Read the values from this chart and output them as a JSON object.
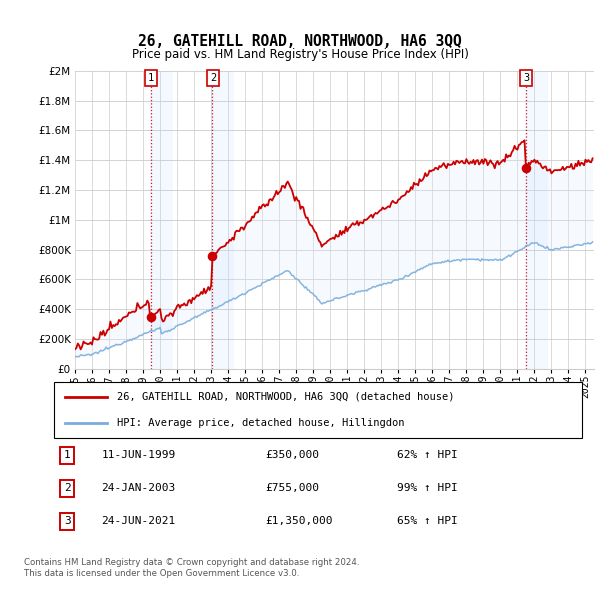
{
  "title": "26, GATEHILL ROAD, NORTHWOOD, HA6 3QQ",
  "subtitle": "Price paid vs. HM Land Registry's House Price Index (HPI)",
  "ytick_values": [
    0,
    200000,
    400000,
    600000,
    800000,
    1000000,
    1200000,
    1400000,
    1600000,
    1800000,
    2000000
  ],
  "ylim": [
    0,
    2000000
  ],
  "legend_line1": "26, GATEHILL ROAD, NORTHWOOD, HA6 3QQ (detached house)",
  "legend_line2": "HPI: Average price, detached house, Hillingdon",
  "sale1_date": "11-JUN-1999",
  "sale1_price": 350000,
  "sale1_hpi": "62% ↑ HPI",
  "sale1_year": 1999.44,
  "sale2_date": "24-JAN-2003",
  "sale2_price": 755000,
  "sale2_hpi": "99% ↑ HPI",
  "sale2_year": 2003.07,
  "sale3_date": "24-JUN-2021",
  "sale3_price": 1350000,
  "sale3_hpi": "65% ↑ HPI",
  "sale3_year": 2021.48,
  "red_color": "#cc0000",
  "blue_color": "#7aaddc",
  "shade_color": "#ddeeff",
  "footer1": "Contains HM Land Registry data © Crown copyright and database right 2024.",
  "footer2": "This data is licensed under the Open Government Licence v3.0."
}
